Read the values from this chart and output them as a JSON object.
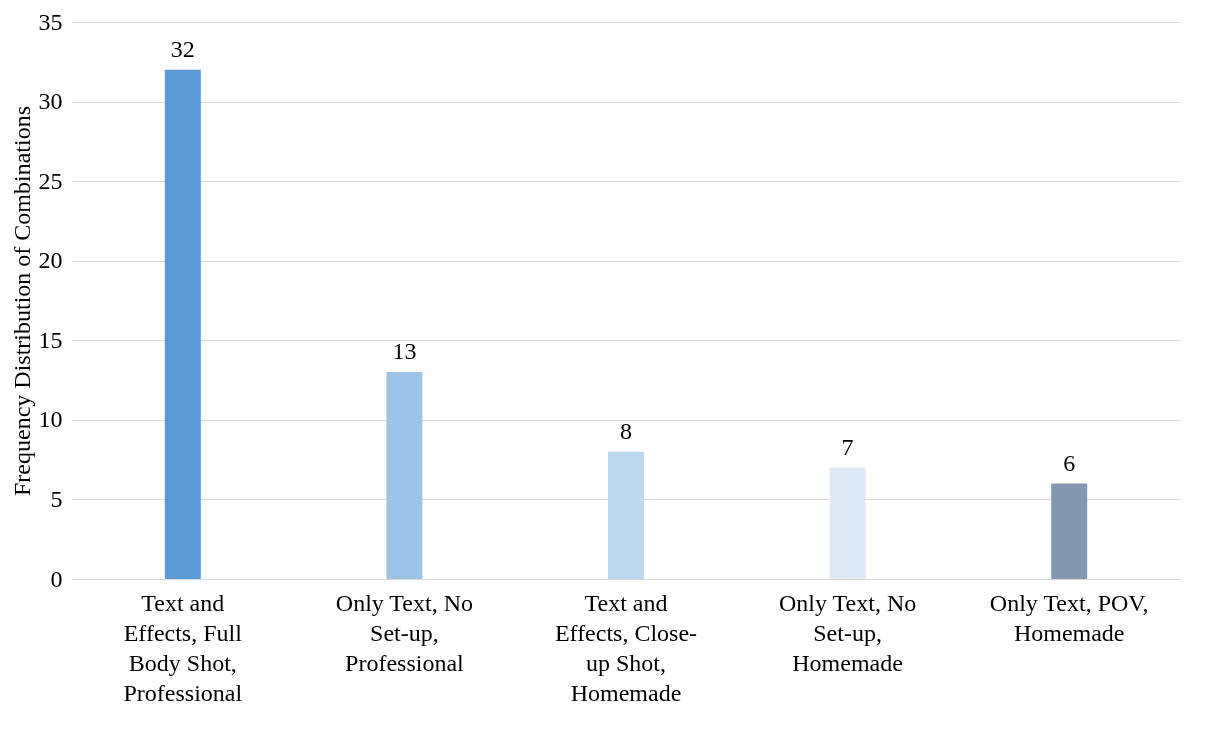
{
  "chart_data": {
    "type": "bar",
    "ylabel": "Frequency Distribution of Combinations",
    "categories": [
      "Text and Effects, Full Body Shot, Professional",
      "Only Text, No Set-up, Professional",
      "Text and Effects, Close-up Shot, Homemade",
      "Only Text, No Set-up, Homemade",
      "Only Text, POV, Homemade"
    ],
    "values": [
      32,
      13,
      8,
      7,
      6
    ],
    "colors": [
      "#5b9bd5",
      "#9dc3e6",
      "#bdd7ee",
      "#deebf7",
      "#8497b0"
    ],
    "ylim": [
      0,
      35
    ],
    "yticks": [
      0,
      5,
      10,
      15,
      20,
      25,
      30,
      35
    ],
    "grid": "y",
    "data_labels": true
  }
}
